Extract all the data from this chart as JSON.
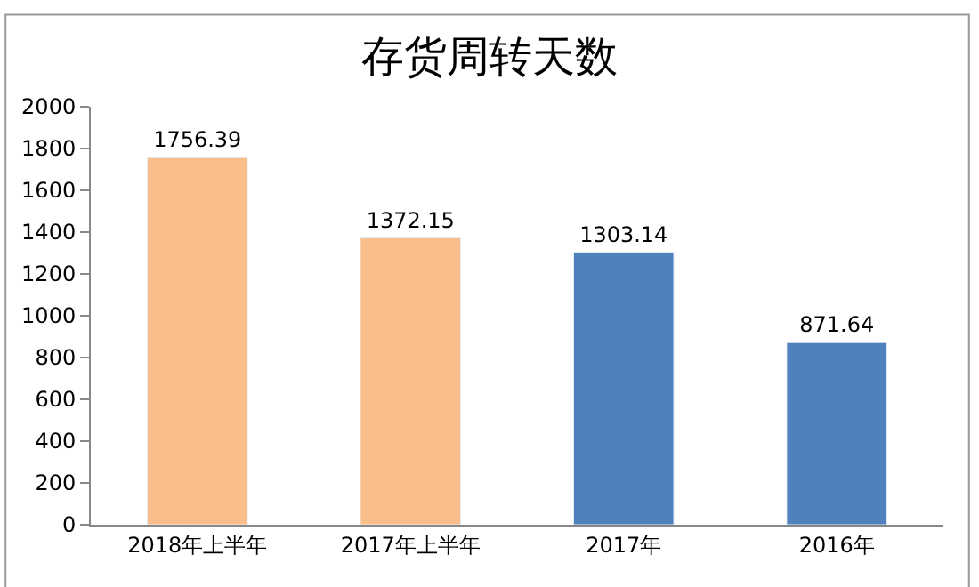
{
  "chart_data": {
    "type": "bar",
    "title": "存货周转天数",
    "categories": [
      "2018年上半年",
      "2017年上半年",
      "2017年",
      "2016年"
    ],
    "values": [
      1756.39,
      1372.15,
      1303.14,
      871.64
    ],
    "colors": [
      "#f9be8a",
      "#f9be8a",
      "#4f81bd",
      "#4f81bd"
    ],
    "data_labels": true,
    "ylim": [
      0,
      2000
    ],
    "yticks": [
      0,
      200,
      400,
      600,
      800,
      1000,
      1200,
      1400,
      1600,
      1800,
      2000
    ]
  }
}
